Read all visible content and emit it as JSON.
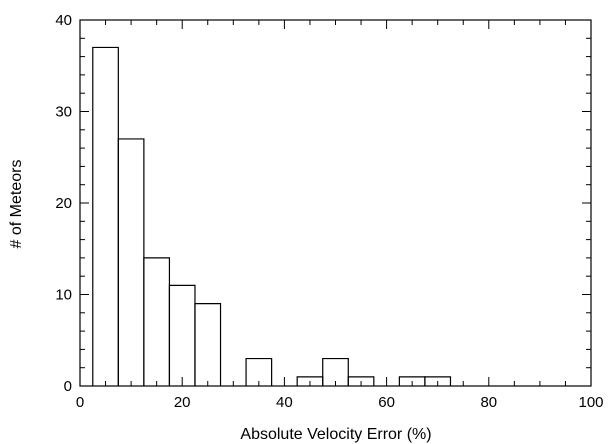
{
  "chart_data": {
    "type": "bar",
    "style": "step-histogram",
    "xlabel": "Absolute Velocity Error (%)",
    "ylabel": "# of Meteors",
    "xlim": [
      0,
      100
    ],
    "ylim": [
      0,
      40
    ],
    "x_ticks": [
      0,
      20,
      40,
      60,
      80,
      100
    ],
    "y_ticks": [
      0,
      10,
      20,
      30,
      40
    ],
    "bin_width": 5,
    "bins": [
      {
        "x0": 2.5,
        "x1": 7.5,
        "count": 37
      },
      {
        "x0": 7.5,
        "x1": 12.5,
        "count": 27
      },
      {
        "x0": 12.5,
        "x1": 17.5,
        "count": 14
      },
      {
        "x0": 17.5,
        "x1": 22.5,
        "count": 11
      },
      {
        "x0": 22.5,
        "x1": 27.5,
        "count": 9
      },
      {
        "x0": 27.5,
        "x1": 32.5,
        "count": 0
      },
      {
        "x0": 32.5,
        "x1": 37.5,
        "count": 3
      },
      {
        "x0": 37.5,
        "x1": 42.5,
        "count": 0
      },
      {
        "x0": 42.5,
        "x1": 47.5,
        "count": 1
      },
      {
        "x0": 47.5,
        "x1": 52.5,
        "count": 3
      },
      {
        "x0": 52.5,
        "x1": 57.5,
        "count": 1
      },
      {
        "x0": 57.5,
        "x1": 62.5,
        "count": 0
      },
      {
        "x0": 62.5,
        "x1": 67.5,
        "count": 1
      },
      {
        "x0": 67.5,
        "x1": 72.5,
        "count": 1
      }
    ],
    "grid": false,
    "line_color": "#000000"
  }
}
